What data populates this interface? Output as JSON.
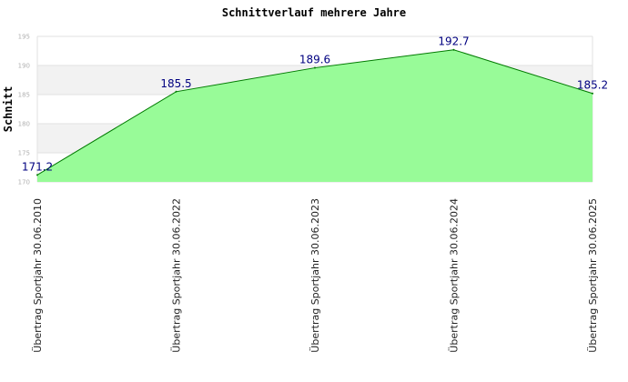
{
  "chart_data": {
    "type": "area",
    "title": "Schnittverlauf mehrere Jahre",
    "xlabel": "",
    "ylabel": "Schnitt",
    "categories": [
      "Übertrag Sportjahr 30.06.2010",
      "Übertrag Sportjahr 30.06.2022",
      "Übertrag Sportjahr 30.06.2023",
      "Übertrag Sportjahr 30.06.2024",
      "Übertrag Sportjahr 30.06.2025"
    ],
    "values": [
      171.2,
      185.5,
      189.6,
      192.7,
      185.2
    ],
    "data_labels": [
      "171.2",
      "185.5",
      "189.6",
      "192.7",
      "185.2"
    ],
    "ylim": [
      170,
      195
    ],
    "yticks": [
      "170",
      "175",
      "180",
      "185",
      "190",
      "195"
    ],
    "grid": true,
    "band_colors": [
      "#ffffff",
      "#f2f2f2"
    ],
    "fill_color": "#98fb98",
    "line_color": "#007a00",
    "label_color": "#000080"
  }
}
